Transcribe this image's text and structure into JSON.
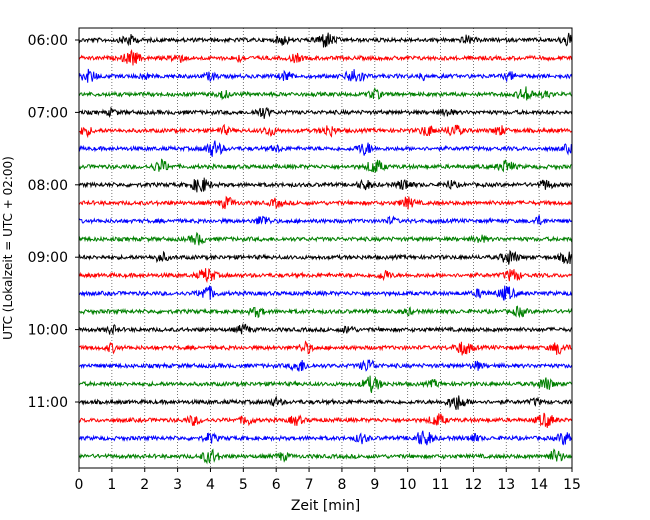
{
  "chart_data": {
    "type": "line",
    "title": "",
    "xlabel": "Zeit  [min]",
    "ylabel": "UTC (Lokalzeit = UTC + 02:00)",
    "xlim": [
      0,
      15
    ],
    "x_ticks": [
      0,
      1,
      2,
      3,
      4,
      5,
      6,
      7,
      8,
      9,
      10,
      11,
      12,
      13,
      14,
      15
    ],
    "x_tick_labels": [
      "0",
      "1",
      "2",
      "3",
      "4",
      "5",
      "6",
      "7",
      "8",
      "9",
      "10",
      "11",
      "12",
      "13",
      "14",
      "15"
    ],
    "y_ticks": [
      "06:00",
      "07:00",
      "08:00",
      "09:00",
      "10:00",
      "11:00"
    ],
    "grid": "vertical dotted at each minute",
    "row_colors": [
      "#000000",
      "#ff0000",
      "#0000ff",
      "#008000"
    ],
    "series": [
      {
        "start": "06:00",
        "bursts": [
          [
            1.5,
            0.7
          ],
          [
            6.2,
            0.6
          ],
          [
            7.5,
            1.0
          ],
          [
            11.8,
            0.5
          ],
          [
            14.9,
            0.8
          ]
        ]
      },
      {
        "start": "06:15",
        "bursts": [
          [
            1.6,
            0.9
          ],
          [
            3.0,
            0.6
          ],
          [
            4.9,
            0.4
          ],
          [
            6.6,
            0.5
          ]
        ]
      },
      {
        "start": "06:30",
        "bursts": [
          [
            0.3,
            0.8
          ],
          [
            2.0,
            0.4
          ],
          [
            4.0,
            0.5
          ],
          [
            6.3,
            0.6
          ],
          [
            8.4,
            1.0
          ],
          [
            10.5,
            0.4
          ],
          [
            13.1,
            0.5
          ]
        ]
      },
      {
        "start": "06:45",
        "bursts": [
          [
            4.4,
            0.5
          ],
          [
            9.0,
            0.6
          ],
          [
            13.6,
            0.9
          ],
          [
            14.2,
            0.4
          ]
        ]
      },
      {
        "start": "07:00",
        "bursts": [
          [
            1.0,
            0.4
          ],
          [
            5.6,
            0.7
          ],
          [
            11.2,
            0.5
          ]
        ]
      },
      {
        "start": "07:15",
        "bursts": [
          [
            0.2,
            0.6
          ],
          [
            4.4,
            0.5
          ],
          [
            5.8,
            0.6
          ],
          [
            7.6,
            0.7
          ],
          [
            10.6,
            0.7
          ],
          [
            11.4,
            0.8
          ],
          [
            12.8,
            0.6
          ]
        ]
      },
      {
        "start": "07:30",
        "bursts": [
          [
            4.1,
            1.0
          ],
          [
            6.0,
            0.4
          ],
          [
            8.7,
            0.8
          ],
          [
            14.9,
            0.5
          ]
        ]
      },
      {
        "start": "07:45",
        "bursts": [
          [
            2.5,
            0.8
          ],
          [
            9.0,
            0.9
          ],
          [
            13.0,
            0.8
          ]
        ]
      },
      {
        "start": "08:00",
        "bursts": [
          [
            3.7,
            1.0
          ],
          [
            8.7,
            0.6
          ],
          [
            9.9,
            0.7
          ],
          [
            11.3,
            0.5
          ],
          [
            14.2,
            0.6
          ]
        ]
      },
      {
        "start": "08:15",
        "bursts": [
          [
            4.5,
            0.7
          ],
          [
            6.0,
            0.5
          ],
          [
            10.0,
            0.7
          ]
        ]
      },
      {
        "start": "08:30",
        "bursts": [
          [
            5.6,
            0.7
          ],
          [
            9.5,
            0.4
          ],
          [
            14.0,
            0.5
          ]
        ]
      },
      {
        "start": "08:45",
        "bursts": [
          [
            3.6,
            0.7
          ],
          [
            12.2,
            0.5
          ]
        ]
      },
      {
        "start": "09:00",
        "bursts": [
          [
            2.5,
            0.6
          ],
          [
            13.1,
            0.9
          ],
          [
            14.9,
            0.8
          ]
        ]
      },
      {
        "start": "09:15",
        "bursts": [
          [
            3.9,
            0.9
          ],
          [
            9.3,
            0.6
          ],
          [
            13.2,
            0.8
          ]
        ]
      },
      {
        "start": "09:30",
        "bursts": [
          [
            3.9,
            0.9
          ],
          [
            12.2,
            0.5
          ],
          [
            13.0,
            0.9
          ]
        ]
      },
      {
        "start": "09:45",
        "bursts": [
          [
            5.4,
            0.6
          ],
          [
            10.0,
            0.4
          ],
          [
            13.4,
            0.6
          ]
        ]
      },
      {
        "start": "10:00",
        "bursts": [
          [
            1.0,
            0.5
          ],
          [
            5.0,
            0.6
          ],
          [
            8.2,
            0.5
          ]
        ]
      },
      {
        "start": "10:15",
        "bursts": [
          [
            1.0,
            0.5
          ],
          [
            6.9,
            0.7
          ],
          [
            11.7,
            0.9
          ],
          [
            14.6,
            0.8
          ]
        ]
      },
      {
        "start": "10:30",
        "bursts": [
          [
            6.7,
            0.8
          ],
          [
            8.8,
            0.8
          ],
          [
            12.1,
            0.5
          ]
        ]
      },
      {
        "start": "10:45",
        "bursts": [
          [
            8.9,
            1.0
          ],
          [
            10.8,
            0.4
          ],
          [
            14.2,
            0.8
          ]
        ]
      },
      {
        "start": "11:00",
        "bursts": [
          [
            6.0,
            0.5
          ],
          [
            11.5,
            1.0
          ],
          [
            13.9,
            0.4
          ]
        ]
      },
      {
        "start": "11:15",
        "bursts": [
          [
            3.5,
            0.6
          ],
          [
            5.1,
            0.6
          ],
          [
            6.6,
            0.6
          ],
          [
            10.9,
            0.8
          ],
          [
            14.2,
            0.9
          ]
        ]
      },
      {
        "start": "11:30",
        "bursts": [
          [
            4.0,
            0.6
          ],
          [
            8.6,
            0.6
          ],
          [
            10.5,
            1.0
          ],
          [
            12.0,
            0.5
          ],
          [
            14.8,
            0.8
          ]
        ]
      },
      {
        "start": "11:45",
        "bursts": [
          [
            4.0,
            0.9
          ],
          [
            6.2,
            0.5
          ],
          [
            14.5,
            0.8
          ]
        ]
      }
    ]
  }
}
